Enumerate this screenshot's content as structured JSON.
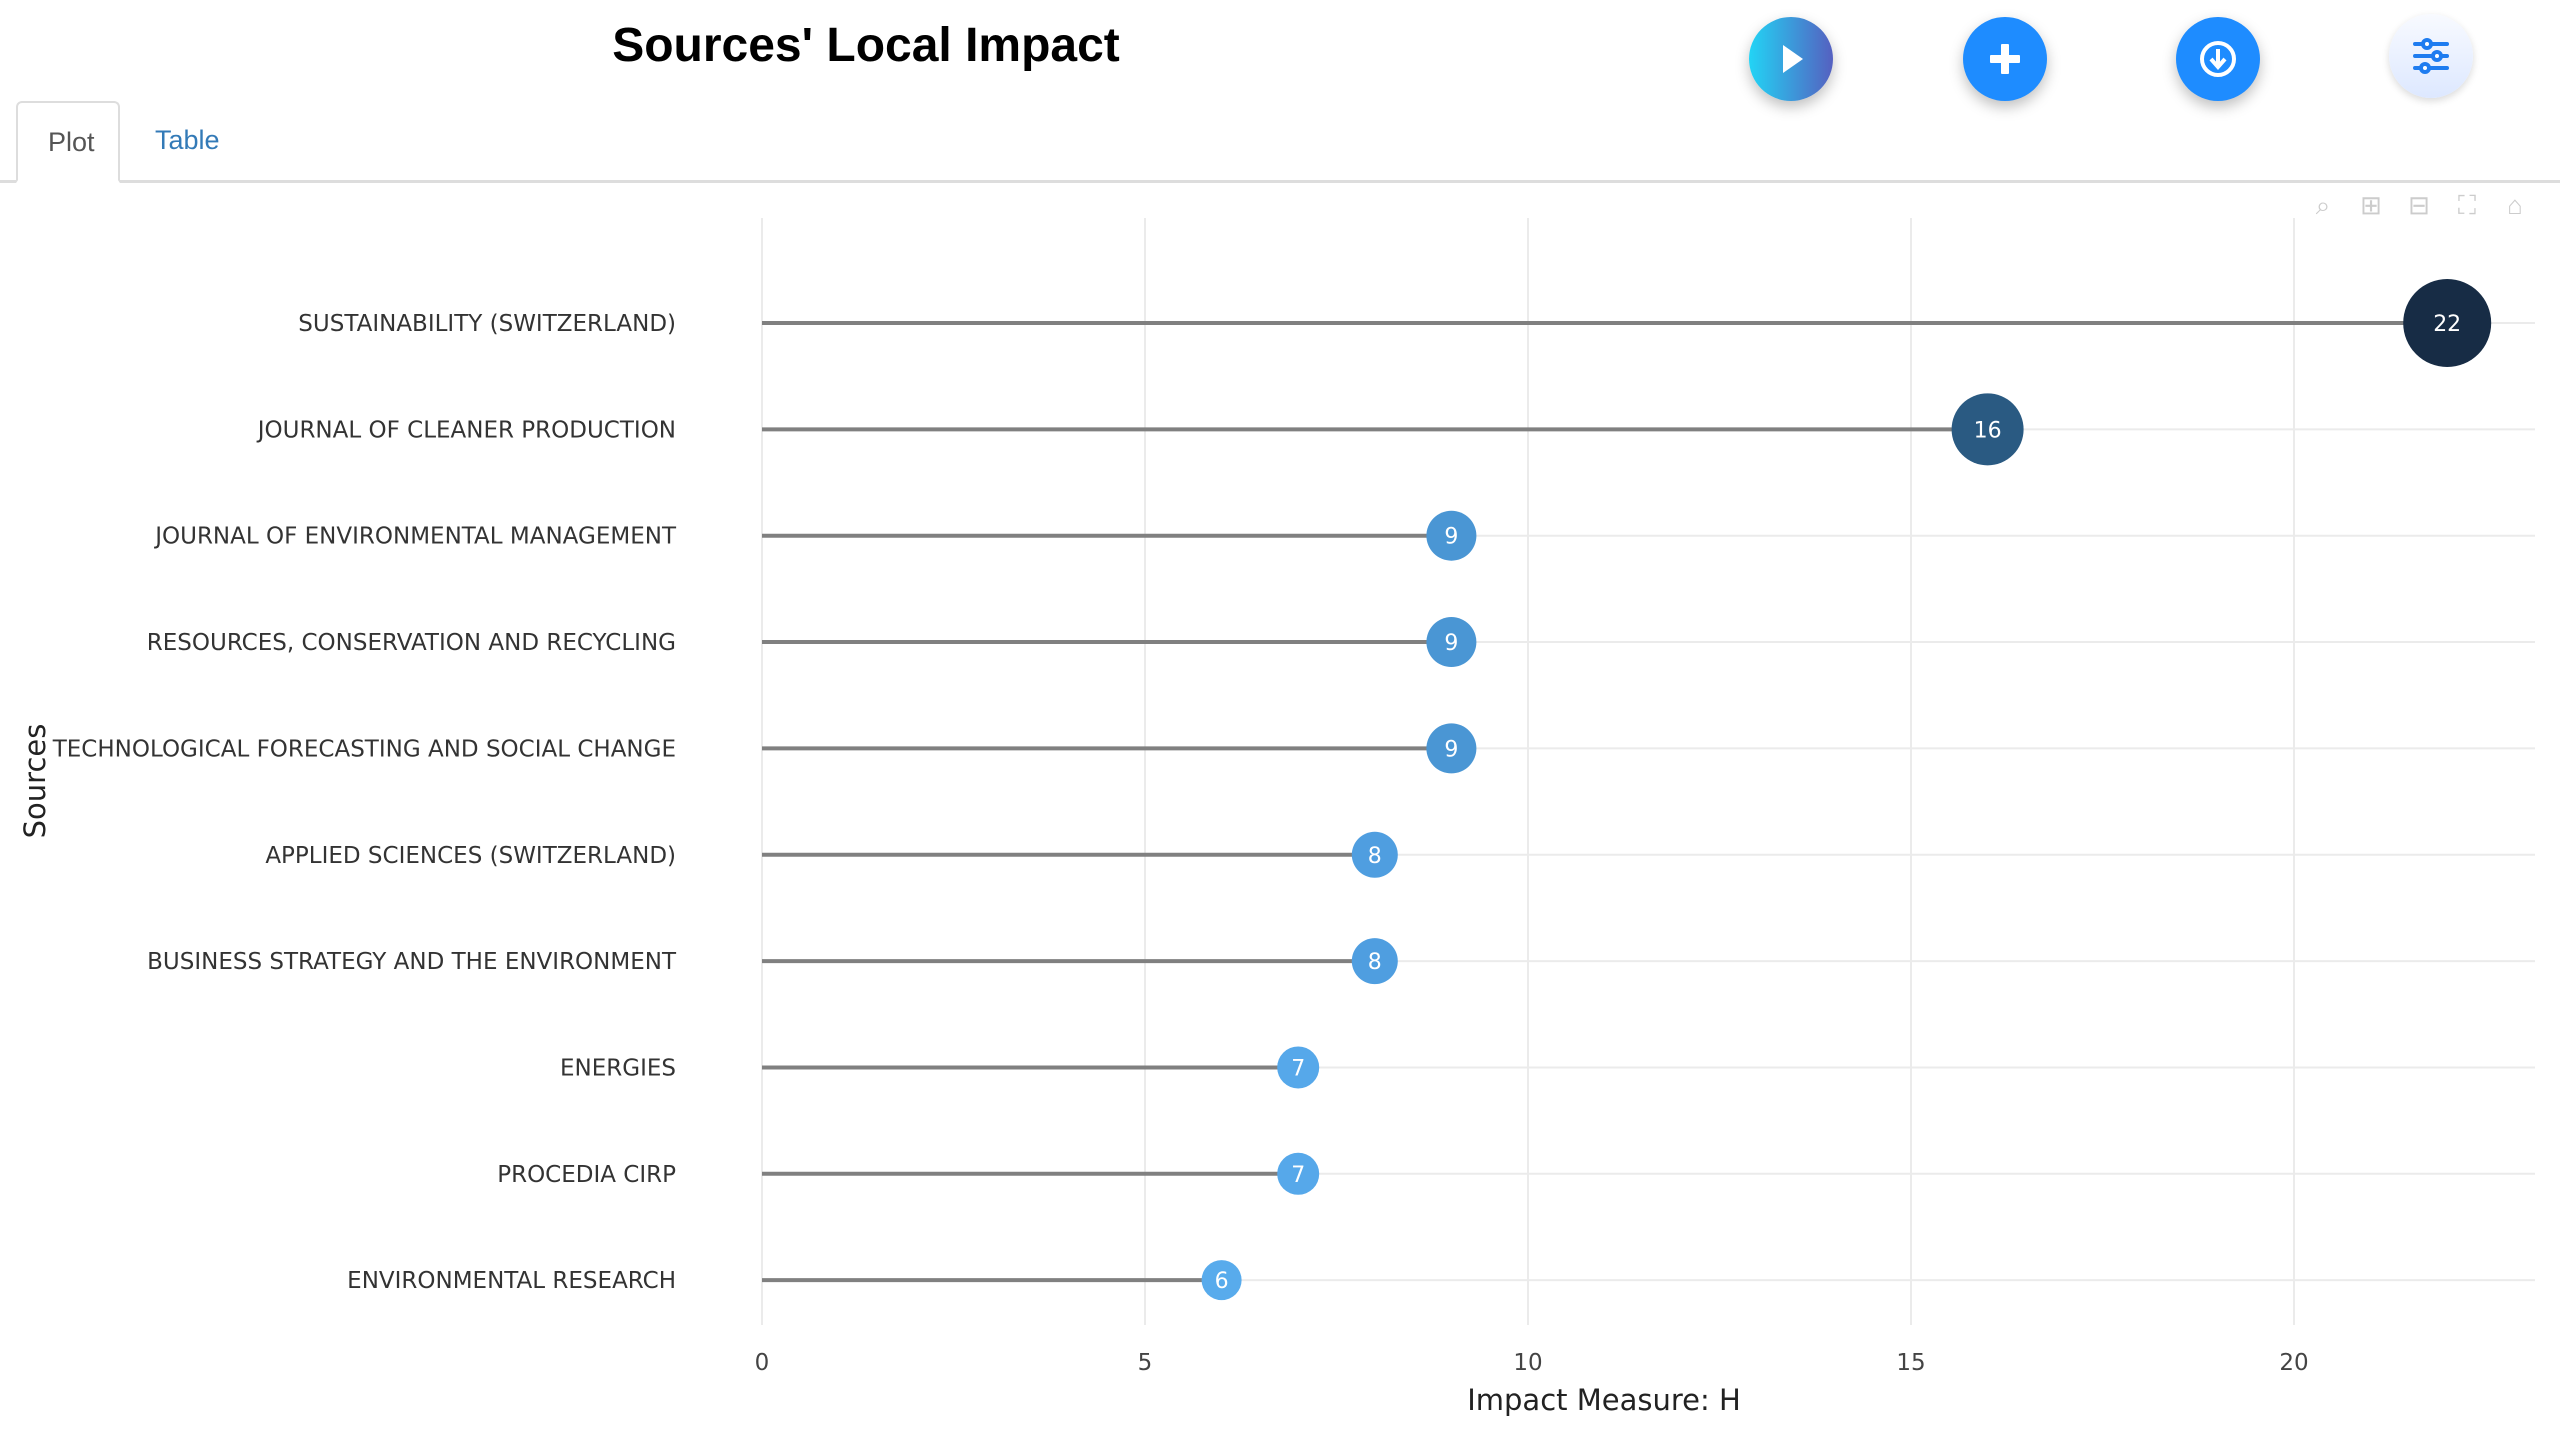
{
  "header": {
    "title": "Sources' Local Impact"
  },
  "tabs": [
    {
      "label": "Plot",
      "active": true
    },
    {
      "label": "Table",
      "active": false
    }
  ],
  "buttons": [
    {
      "name": "play-button",
      "icon": "play-icon"
    },
    {
      "name": "add-button",
      "icon": "plus-icon"
    },
    {
      "name": "download-button",
      "icon": "download-icon"
    },
    {
      "name": "settings-button",
      "icon": "sliders-icon"
    }
  ],
  "modebar": [
    "zoom-icon",
    "zoom-in-icon",
    "zoom-out-icon",
    "autoscale-icon",
    "home-icon"
  ],
  "chart_data": {
    "type": "lollipop",
    "title": "Sources' Local Impact",
    "xlabel": "Impact Measure: H",
    "ylabel": "Sources",
    "xlim": [
      0,
      23.2
    ],
    "xticks": [
      0,
      5,
      10,
      15,
      20
    ],
    "grid": true,
    "categories": [
      "SUSTAINABILITY (SWITZERLAND)",
      "JOURNAL OF CLEANER PRODUCTION",
      "JOURNAL OF ENVIRONMENTAL MANAGEMENT",
      "RESOURCES, CONSERVATION AND RECYCLING",
      "TECHNOLOGICAL FORECASTING AND SOCIAL CHANGE",
      "APPLIED SCIENCES (SWITZERLAND)",
      "BUSINESS STRATEGY AND THE ENVIRONMENT",
      "ENERGIES",
      "PROCEDIA CIRP",
      "ENVIRONMENTAL RESEARCH"
    ],
    "values": [
      22,
      16,
      9,
      9,
      9,
      8,
      8,
      7,
      7,
      6
    ],
    "colors": {
      "22": "#172c45",
      "16": "#2a5a82",
      "9": "#4a96d4",
      "8": "#4f9ee0",
      "7": "#56a8ea",
      "6": "#58abec"
    }
  }
}
